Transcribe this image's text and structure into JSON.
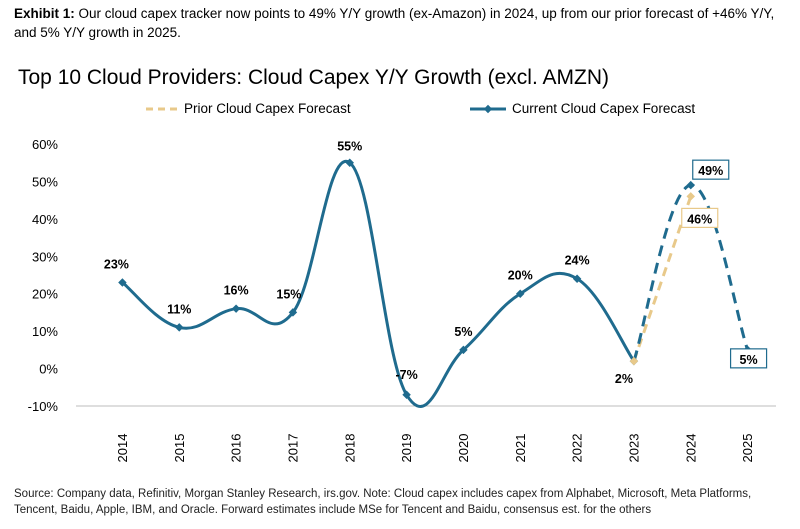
{
  "exhibit": {
    "label": "Exhibit 1:",
    "text": "Our cloud capex tracker now points to 49% Y/Y growth (ex-Amazon) in 2024, up from our prior forecast of +46% Y/Y, and 5% Y/Y growth in 2025."
  },
  "source": "Source: Company data, Refinitiv, Morgan Stanley Research, irs.gov. Note: Cloud capex includes capex from Alphabet, Microsoft, Meta Platforms, Tencent, Baidu, Apple, IBM, and Oracle. Forward estimates include MSe for Tencent and Baidu, consensus est. for the others",
  "colors": {
    "current": "#1f6b8e",
    "prior": "#e8c98a"
  },
  "chart_data": {
    "type": "line",
    "title": "Top 10 Cloud Providers: Cloud Capex Y/Y Growth (excl. AMZN)",
    "xlabel": "",
    "ylabel": "",
    "ylim": [
      -10,
      60
    ],
    "yticks": [
      "-10%",
      "0%",
      "10%",
      "20%",
      "30%",
      "40%",
      "50%",
      "60%"
    ],
    "grid": false,
    "legend_position": "top",
    "categories": [
      "2014",
      "2015",
      "2016",
      "2017",
      "2018",
      "2019",
      "2020",
      "2021",
      "2022",
      "2023",
      "2024",
      "2025"
    ],
    "series": [
      {
        "name": "Current Cloud Capex Forecast",
        "values": [
          23,
          11,
          16,
          15,
          55,
          -7,
          5,
          20,
          24,
          2,
          49,
          5
        ],
        "labels": [
          "23%",
          "11%",
          "16%",
          "15%",
          "55%",
          "-7%",
          "5%",
          "20%",
          "24%",
          "2%",
          "49%",
          "5%"
        ],
        "style": "solid, dashed for 2023-2025"
      },
      {
        "name": "Prior Cloud Capex Forecast",
        "x": [
          "2023",
          "2024"
        ],
        "values": [
          2,
          46
        ],
        "labels": [
          "",
          "46%"
        ],
        "style": "dashed"
      }
    ]
  }
}
